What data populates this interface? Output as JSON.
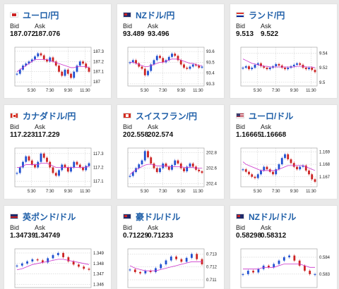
{
  "quote_labels": {
    "bid": "Bid",
    "ask": "Ask"
  },
  "colors": {
    "title": "#1f5fa8",
    "up_candle": "#1f4fd0",
    "down_candle": "#cc2222",
    "moving_average": "#cc33cc"
  },
  "pairs": [
    {
      "name": "ユーロ/円",
      "flag": "eu-flag-icon",
      "bid": "187.072",
      "ask": "187.076",
      "chart_data": {
        "type": "line",
        "x_ticks": [
          "5:30",
          "7:30",
          "9:30",
          "11:30"
        ],
        "y_ticks": [
          "187.3",
          "187.2",
          "187.1",
          "187"
        ],
        "ylim": [
          186.96,
          187.34
        ],
        "series": [
          {
            "values": [
              187.08,
              187.12,
              187.16,
              187.18,
              187.2,
              187.22,
              187.25,
              187.28,
              187.26,
              187.22,
              187.2,
              187.24,
              187.2,
              187.16,
              187.1,
              187.06,
              187.12,
              187.08,
              187.04,
              187.1,
              187.16,
              187.2,
              187.18,
              187.14,
              187.1
            ]
          },
          {
            "values": [
              187.1,
              187.12,
              187.14,
              187.16,
              187.18,
              187.2,
              187.22,
              187.22,
              187.22,
              187.22,
              187.22,
              187.21,
              187.2,
              187.19,
              187.18,
              187.17,
              187.16,
              187.15,
              187.14,
              187.14,
              187.15,
              187.15,
              187.15,
              187.15,
              187.14
            ]
          }
        ]
      }
    },
    {
      "name": "NZドル/円",
      "flag": "nz-flag-icon",
      "bid": "93.489",
      "ask": "93.496",
      "chart_data": {
        "type": "line",
        "x_ticks": [
          "5:30",
          "7:30",
          "9:30",
          "11:30"
        ],
        "y_ticks": [
          "93.6",
          "93.5",
          "93.4",
          "93.3"
        ],
        "ylim": [
          93.28,
          93.64
        ],
        "series": [
          {
            "values": [
              93.5,
              93.52,
              93.49,
              93.46,
              93.44,
              93.38,
              93.42,
              93.48,
              93.52,
              93.56,
              93.54,
              93.5,
              93.52,
              93.55,
              93.58,
              93.56,
              93.52,
              93.48,
              93.45,
              93.44,
              93.46,
              93.48,
              93.47,
              93.45,
              93.46
            ]
          },
          {
            "values": [
              93.5,
              93.5,
              93.49,
              93.48,
              93.47,
              93.46,
              93.46,
              93.47,
              93.48,
              93.49,
              93.5,
              93.5,
              93.51,
              93.52,
              93.53,
              93.53,
              93.53,
              93.52,
              93.51,
              93.5,
              93.49,
              93.49,
              93.48,
              93.47,
              93.47
            ]
          }
        ]
      }
    },
    {
      "name": "ランド/円",
      "flag": "za-flag-icon",
      "bid": "9.513",
      "ask": "9.522",
      "chart_data": {
        "type": "line",
        "x_ticks": [
          "5:30",
          "7:30",
          "9:30",
          "11:30"
        ],
        "y_ticks": [
          "9.54",
          "9.52",
          "9.5"
        ],
        "ylim": [
          9.495,
          9.548
        ],
        "series": [
          {
            "values": [
              9.52,
              9.522,
              9.518,
              9.52,
              9.524,
              9.526,
              9.522,
              9.52,
              9.518,
              9.52,
              9.522,
              9.525,
              9.523,
              9.52,
              9.518,
              9.52,
              9.522,
              9.524,
              9.526,
              9.524,
              9.52,
              9.518,
              9.52,
              9.517,
              9.514
            ]
          },
          {
            "values": [
              9.532,
              9.53,
              9.528,
              9.526,
              9.525,
              9.524,
              9.523,
              9.522,
              9.522,
              9.521,
              9.521,
              9.521,
              9.521,
              9.521,
              9.521,
              9.521,
              9.521,
              9.521,
              9.522,
              9.522,
              9.522,
              9.521,
              9.521,
              9.521,
              9.52
            ]
          }
        ]
      }
    },
    {
      "name": "カナダドル/円",
      "flag": "ca-flag-icon",
      "bid": "117.223",
      "ask": "117.229",
      "chart_data": {
        "type": "line",
        "x_ticks": [
          "5:30",
          "7:30",
          "9:30",
          "11:30"
        ],
        "y_ticks": [
          "117.3",
          "117.2",
          "117.1"
        ],
        "ylim": [
          117.06,
          117.34
        ],
        "series": [
          {
            "values": [
              117.16,
              117.2,
              117.24,
              117.28,
              117.25,
              117.22,
              117.2,
              117.24,
              117.3,
              117.27,
              117.24,
              117.2,
              117.16,
              117.14,
              117.18,
              117.22,
              117.2,
              117.17,
              117.2,
              117.24,
              117.22,
              117.2,
              117.18,
              117.21,
              117.23
            ]
          },
          {
            "values": [
              117.2,
              117.2,
              117.21,
              117.22,
              117.22,
              117.22,
              117.22,
              117.22,
              117.23,
              117.23,
              117.23,
              117.22,
              117.21,
              117.2,
              117.2,
              117.2,
              117.2,
              117.2,
              117.2,
              117.2,
              117.2,
              117.2,
              117.2,
              117.2,
              117.21
            ]
          }
        ]
      }
    },
    {
      "name": "スイスフラン/円",
      "flag": "ch-flag-icon",
      "bid": "202.558",
      "ask": "202.574",
      "chart_data": {
        "type": "line",
        "x_ticks": [
          "5:30",
          "7:30",
          "9:30",
          "11:30"
        ],
        "y_ticks": [
          "202.8",
          "202.6",
          "202.4"
        ],
        "ylim": [
          202.36,
          202.86
        ],
        "series": [
          {
            "values": [
              202.5,
              202.55,
              202.6,
              202.65,
              202.7,
              202.82,
              202.74,
              202.66,
              202.6,
              202.55,
              202.6,
              202.66,
              202.62,
              202.58,
              202.64,
              202.7,
              202.66,
              202.6,
              202.56,
              202.62,
              202.66,
              202.62,
              202.58,
              202.56,
              202.54
            ]
          },
          {
            "values": [
              202.52,
              202.55,
              202.58,
              202.6,
              202.62,
              202.64,
              202.65,
              202.65,
              202.64,
              202.63,
              202.63,
              202.63,
              202.63,
              202.62,
              202.62,
              202.62,
              202.62,
              202.62,
              202.61,
              202.61,
              202.61,
              202.61,
              202.6,
              202.6,
              202.6
            ]
          }
        ]
      }
    },
    {
      "name": "ユーロ/ドル",
      "flag": "us-flag-icon",
      "bid": "1.16665",
      "ask": "1.16668",
      "chart_data": {
        "type": "line",
        "x_ticks": [
          "5:30",
          "7:30",
          "9:30",
          "11:30"
        ],
        "y_ticks": [
          "1.169",
          "1.168",
          "1.167"
        ],
        "ylim": [
          1.1662,
          1.1693
        ],
        "series": [
          {
            "values": [
              1.1676,
              1.1674,
              1.1672,
              1.167,
              1.1669,
              1.1672,
              1.1675,
              1.1678,
              1.1676,
              1.1674,
              1.1672,
              1.1676,
              1.168,
              1.1685,
              1.1688,
              1.1684,
              1.1681,
              1.1678,
              1.1676,
              1.1678,
              1.1679,
              1.1675,
              1.1672,
              1.1668,
              1.1666
            ]
          },
          {
            "values": [
              1.1682,
              1.168,
              1.1679,
              1.1678,
              1.1677,
              1.1676,
              1.1675,
              1.1675,
              1.1675,
              1.1675,
              1.1675,
              1.1675,
              1.1676,
              1.1677,
              1.1678,
              1.1679,
              1.1679,
              1.1679,
              1.1679,
              1.1679,
              1.1679,
              1.1678,
              1.1677,
              1.1676,
              1.1675
            ]
          }
        ]
      }
    },
    {
      "name": "英ポンド/ドル",
      "flag": "gb-flag-icon",
      "bid": "1.34739",
      "ask": "1.34749",
      "chart_data": {
        "type": "line",
        "x_ticks": [],
        "y_ticks": [
          "1.349",
          "1.348",
          "1.347",
          "1.346"
        ],
        "ylim": [
          1.3457,
          1.3494
        ],
        "series": [
          {
            "values": [
              1.3478,
              1.348,
              1.3482,
              1.3484,
              1.3483,
              1.3481,
              1.3485,
              1.3488,
              1.349,
              1.3486,
              1.3482,
              1.3479,
              1.3477,
              1.3475,
              1.3474
            ]
          },
          {
            "values": [
              1.3474,
              1.3475,
              1.3477,
              1.3479,
              1.348,
              1.3481,
              1.3482,
              1.3483,
              1.3484,
              1.3484,
              1.3483,
              1.3482,
              1.3481,
              1.348,
              1.3479
            ]
          }
        ]
      }
    },
    {
      "name": "豪ドル/ドル",
      "flag": "au-flag-icon",
      "bid": "0.71229",
      "ask": "0.71233",
      "chart_data": {
        "type": "line",
        "x_ticks": [],
        "y_ticks": [
          "0.713",
          "0.712",
          "0.711"
        ],
        "ylim": [
          0.7104,
          0.7134
        ],
        "series": [
          {
            "values": [
              0.7118,
              0.7116,
              0.7115,
              0.7117,
              0.7116,
              0.7119,
              0.7122,
              0.7125,
              0.7128,
              0.7126,
              0.7124,
              0.7127,
              0.713,
              0.7126,
              0.7122
            ]
          },
          {
            "values": [
              0.7121,
              0.7119,
              0.7118,
              0.7117,
              0.7117,
              0.7117,
              0.7118,
              0.7119,
              0.712,
              0.7121,
              0.7122,
              0.7123,
              0.7124,
              0.7124,
              0.7124
            ]
          }
        ]
      }
    },
    {
      "name": "NZドル/ドル",
      "flag": "nz-flag-icon",
      "bid": "0.58298",
      "ask": "0.58312",
      "chart_data": {
        "type": "line",
        "x_ticks": [],
        "y_ticks": [
          "0.584",
          "0.583"
        ],
        "ylim": [
          0.5822,
          0.5845
        ],
        "series": [
          {
            "values": [
              0.583,
              0.5832,
              0.5831,
              0.5833,
              0.5835,
              0.5834,
              0.5836,
              0.5838,
              0.584,
              0.5841,
              0.5838,
              0.5835,
              0.5832,
              0.583,
              0.583
            ]
          },
          {
            "values": [
              0.5833,
              0.5833,
              0.5833,
              0.5833,
              0.5834,
              0.5834,
              0.5834,
              0.5835,
              0.5836,
              0.5836,
              0.5836,
              0.5836,
              0.5835,
              0.5834,
              0.5834
            ]
          }
        ]
      }
    }
  ]
}
